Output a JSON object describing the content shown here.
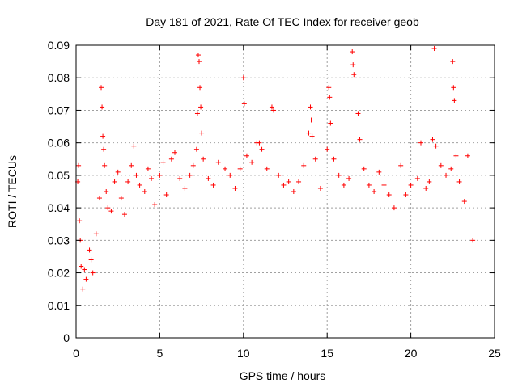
{
  "chart_data": {
    "type": "scatter",
    "title": "Day 181 of 2021, Rate Of TEC Index for receiver geob",
    "xlabel": "GPS time / hours",
    "ylabel": "ROTI / TECUs",
    "xlim": [
      0,
      25
    ],
    "ylim": [
      0,
      0.09
    ],
    "xticks": [
      0,
      5,
      10,
      15,
      20,
      25
    ],
    "xtick_labels": [
      "0",
      "5",
      "10",
      "15",
      "20",
      "25"
    ],
    "yticks": [
      0,
      0.01,
      0.02,
      0.03,
      0.04,
      0.05,
      0.06,
      0.07,
      0.08,
      0.09
    ],
    "ytick_labels": [
      "0",
      "0.01",
      "0.02",
      "0.03",
      "0.04",
      "0.05",
      "0.06",
      "0.07",
      "0.08",
      "0.09"
    ],
    "grid": true,
    "marker": "plus",
    "color": "#ff0000",
    "series": [
      {
        "points": [
          [
            0.1,
            0.048
          ],
          [
            0.15,
            0.053
          ],
          [
            0.2,
            0.036
          ],
          [
            0.25,
            0.03
          ],
          [
            0.3,
            0.022
          ],
          [
            0.4,
            0.015
          ],
          [
            0.5,
            0.021
          ],
          [
            0.6,
            0.018
          ],
          [
            0.8,
            0.027
          ],
          [
            0.9,
            0.024
          ],
          [
            1.0,
            0.02
          ],
          [
            1.2,
            0.032
          ],
          [
            1.4,
            0.043
          ],
          [
            1.5,
            0.077
          ],
          [
            1.55,
            0.071
          ],
          [
            1.6,
            0.062
          ],
          [
            1.65,
            0.058
          ],
          [
            1.7,
            0.053
          ],
          [
            1.8,
            0.045
          ],
          [
            1.9,
            0.04
          ],
          [
            2.1,
            0.039
          ],
          [
            2.3,
            0.048
          ],
          [
            2.5,
            0.051
          ],
          [
            2.7,
            0.043
          ],
          [
            2.9,
            0.038
          ],
          [
            3.1,
            0.048
          ],
          [
            3.3,
            0.053
          ],
          [
            3.45,
            0.059
          ],
          [
            3.6,
            0.05
          ],
          [
            3.8,
            0.047
          ],
          [
            4.1,
            0.045
          ],
          [
            4.3,
            0.052
          ],
          [
            4.5,
            0.049
          ],
          [
            4.7,
            0.041
          ],
          [
            5.0,
            0.05
          ],
          [
            5.2,
            0.054
          ],
          [
            5.4,
            0.044
          ],
          [
            5.7,
            0.055
          ],
          [
            5.9,
            0.057
          ],
          [
            6.2,
            0.049
          ],
          [
            6.5,
            0.046
          ],
          [
            6.8,
            0.05
          ],
          [
            7.0,
            0.053
          ],
          [
            7.2,
            0.058
          ],
          [
            7.25,
            0.069
          ],
          [
            7.3,
            0.087
          ],
          [
            7.35,
            0.085
          ],
          [
            7.4,
            0.077
          ],
          [
            7.45,
            0.071
          ],
          [
            7.5,
            0.063
          ],
          [
            7.6,
            0.055
          ],
          [
            7.9,
            0.049
          ],
          [
            8.2,
            0.047
          ],
          [
            8.5,
            0.054
          ],
          [
            8.9,
            0.052
          ],
          [
            9.2,
            0.05
          ],
          [
            9.5,
            0.046
          ],
          [
            9.8,
            0.052
          ],
          [
            10.0,
            0.08
          ],
          [
            10.05,
            0.072
          ],
          [
            10.2,
            0.056
          ],
          [
            10.5,
            0.054
          ],
          [
            10.8,
            0.06
          ],
          [
            10.95,
            0.06
          ],
          [
            11.1,
            0.058
          ],
          [
            11.4,
            0.052
          ],
          [
            11.7,
            0.071
          ],
          [
            11.8,
            0.07
          ],
          [
            12.1,
            0.05
          ],
          [
            12.4,
            0.047
          ],
          [
            12.7,
            0.048
          ],
          [
            13.0,
            0.045
          ],
          [
            13.3,
            0.048
          ],
          [
            13.6,
            0.053
          ],
          [
            13.9,
            0.063
          ],
          [
            14.0,
            0.071
          ],
          [
            14.05,
            0.067
          ],
          [
            14.1,
            0.062
          ],
          [
            14.3,
            0.055
          ],
          [
            14.6,
            0.046
          ],
          [
            15.0,
            0.058
          ],
          [
            15.1,
            0.077
          ],
          [
            15.15,
            0.074
          ],
          [
            15.2,
            0.066
          ],
          [
            15.4,
            0.055
          ],
          [
            15.7,
            0.05
          ],
          [
            16.0,
            0.047
          ],
          [
            16.3,
            0.049
          ],
          [
            16.5,
            0.088
          ],
          [
            16.55,
            0.084
          ],
          [
            16.6,
            0.081
          ],
          [
            16.85,
            0.069
          ],
          [
            16.95,
            0.061
          ],
          [
            17.2,
            0.052
          ],
          [
            17.5,
            0.047
          ],
          [
            17.8,
            0.045
          ],
          [
            18.1,
            0.051
          ],
          [
            18.4,
            0.047
          ],
          [
            18.7,
            0.044
          ],
          [
            19.0,
            0.04
          ],
          [
            19.4,
            0.053
          ],
          [
            19.7,
            0.044
          ],
          [
            20.0,
            0.047
          ],
          [
            20.4,
            0.049
          ],
          [
            20.6,
            0.06
          ],
          [
            20.9,
            0.046
          ],
          [
            21.1,
            0.048
          ],
          [
            21.3,
            0.061
          ],
          [
            21.4,
            0.089
          ],
          [
            21.5,
            0.059
          ],
          [
            21.8,
            0.053
          ],
          [
            22.1,
            0.05
          ],
          [
            22.4,
            0.052
          ],
          [
            22.5,
            0.085
          ],
          [
            22.55,
            0.077
          ],
          [
            22.6,
            0.073
          ],
          [
            22.7,
            0.056
          ],
          [
            22.9,
            0.048
          ],
          [
            23.2,
            0.042
          ],
          [
            23.4,
            0.056
          ],
          [
            23.7,
            0.03
          ]
        ]
      }
    ]
  }
}
